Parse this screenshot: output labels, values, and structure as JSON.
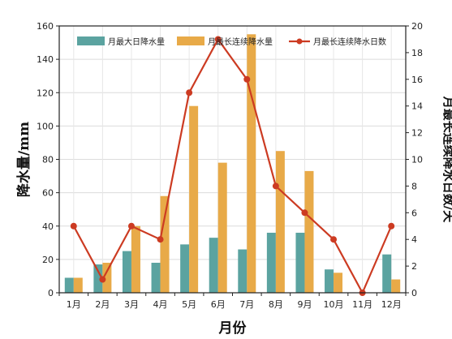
{
  "chart_data": {
    "type": "bar",
    "categories": [
      "1月",
      "2月",
      "3月",
      "4月",
      "5月",
      "6月",
      "7月",
      "8月",
      "9月",
      "10月",
      "11月",
      "12月"
    ],
    "series": [
      {
        "name": "月最大日降水量",
        "axis": "left",
        "type": "bar",
        "color": "#5ba3a0",
        "values": [
          9,
          17,
          25,
          18,
          29,
          33,
          26,
          36,
          36,
          14,
          0,
          23
        ]
      },
      {
        "name": "月最长连续降水量",
        "axis": "left",
        "type": "bar",
        "color": "#e8aa48",
        "values": [
          9,
          18,
          40,
          58,
          112,
          78,
          155,
          85,
          73,
          12,
          0,
          8
        ]
      },
      {
        "name": "月最长连续降水日数",
        "axis": "right",
        "type": "line",
        "color": "#cc3b22",
        "values": [
          5,
          1,
          5,
          4,
          15,
          19,
          16,
          8,
          6,
          4,
          0,
          5
        ]
      }
    ],
    "xlabel": "月份",
    "ylabel": "降水量/mm",
    "y2label": "月最长连续降水日数/天",
    "ylim": [
      0,
      160
    ],
    "y2lim": [
      0,
      20
    ],
    "yticks": [
      0,
      20,
      40,
      60,
      80,
      100,
      120,
      140,
      160
    ],
    "y2ticks": [
      0,
      2,
      4,
      6,
      8,
      10,
      12,
      14,
      16,
      18,
      20
    ],
    "grid": true,
    "legend": "top"
  }
}
